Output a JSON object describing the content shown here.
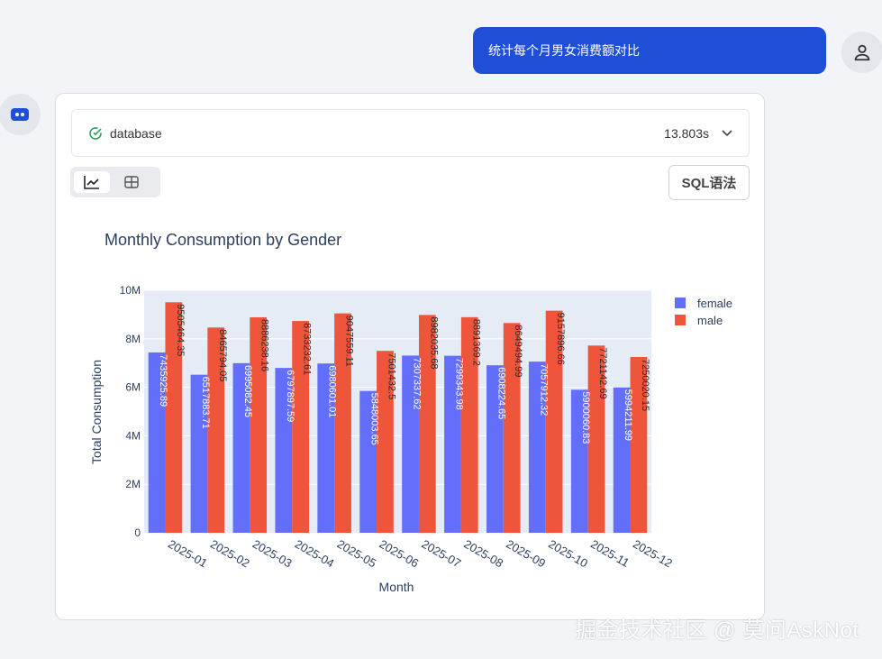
{
  "user_message": "统计每个月男女消费额对比",
  "result_card": {
    "source": "database",
    "duration": "13.803s",
    "sql_button": "SQL语法"
  },
  "colors": {
    "female": "#636efa",
    "male": "#ef553b",
    "accent": "#1f4fd6"
  },
  "icons": [
    "user-icon",
    "bot-icon",
    "check-circle-icon",
    "chevron-down-icon",
    "line-chart-icon",
    "table-icon"
  ],
  "chart_data": {
    "type": "bar",
    "title": "Monthly Consumption by Gender",
    "xlabel": "Month",
    "ylabel": "Total Consumption",
    "ylim": [
      0,
      10000000
    ],
    "yticks": [
      "0",
      "2M",
      "4M",
      "6M",
      "8M",
      "10M"
    ],
    "categories": [
      "2025-01",
      "2025-02",
      "2025-03",
      "2025-04",
      "2025-05",
      "2025-06",
      "2025-07",
      "2025-08",
      "2025-09",
      "2025-10",
      "2025-11",
      "2025-12"
    ],
    "legend_position": "top-right",
    "series": [
      {
        "name": "female",
        "values": [
          7435925.89,
          6517883.71,
          6995082.45,
          6797897.59,
          6980601.01,
          5848003.65,
          7307337.62,
          7299343.98,
          6908224.65,
          7057912.32,
          5900060.83,
          5994211.99
        ],
        "labels": [
          "7435925.89",
          "6517883.71",
          "6995082.45",
          "6797897.59",
          "6980601.01",
          "5848003.65",
          "7307337.62",
          "7299343.98",
          "6908224.65",
          "7057912.32",
          "5900060.83",
          "5994211.99"
        ]
      },
      {
        "name": "male",
        "values": [
          9505464.35,
          8465794.05,
          8886238.16,
          8733232.61,
          9047559.11,
          7501432.5,
          8982035.68,
          8891369.2,
          8649494.99,
          9157896.66,
          7721142.69,
          7250020.15
        ],
        "labels": [
          "9505464.35",
          "8465794.05",
          "8886238.16",
          "8733232.61",
          "9047559.11",
          "7501432.5",
          "8982035.68",
          "8891369.2",
          "8649494.99",
          "9157896.66",
          "7721142.69",
          "7250020.15"
        ]
      }
    ]
  },
  "watermark": "掘金技术社区 @ 莫问AskNot"
}
